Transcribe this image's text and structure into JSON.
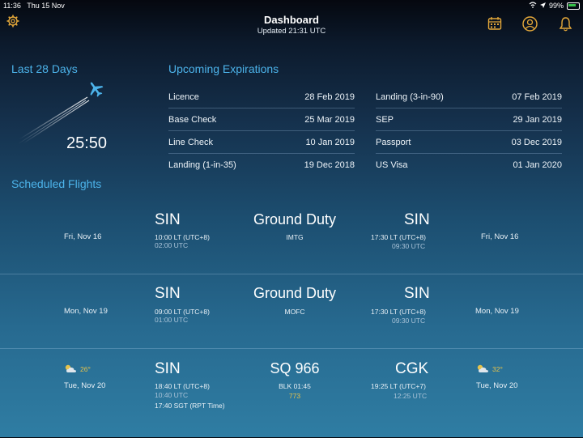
{
  "status": {
    "time": "11:36",
    "date": "Thu 15 Nov",
    "battery": "99%"
  },
  "header": {
    "title": "Dashboard",
    "updated": "Updated 21:31 UTC"
  },
  "last_days": {
    "title": "Last 28 Days",
    "total": "25:50"
  },
  "expirations": {
    "title": "Upcoming Expirations",
    "left": [
      {
        "label": "Licence",
        "date": "28 Feb 2019"
      },
      {
        "label": "Base Check",
        "date": "25 Mar 2019"
      },
      {
        "label": "Line Check",
        "date": "10 Jan 2019"
      },
      {
        "label": "Landing (1-in-35)",
        "date": "19 Dec 2018"
      }
    ],
    "right": [
      {
        "label": "Landing (3-in-90)",
        "date": "07 Feb 2019"
      },
      {
        "label": "SEP",
        "date": "29 Jan 2019"
      },
      {
        "label": "Passport",
        "date": "03 Dec 2019"
      },
      {
        "label": "US Visa",
        "date": "01 Jan 2020"
      }
    ]
  },
  "scheduled": {
    "title": "Scheduled Flights",
    "flights": [
      {
        "dep_date": "Fri, Nov 16",
        "dep": "SIN",
        "dep_lt": "10:00 LT (UTC+8)",
        "dep_utc": "02:00 UTC",
        "mid": "Ground Duty",
        "mid_sub": "IMTG",
        "arr": "SIN",
        "arr_lt": "17:30 LT (UTC+8)",
        "arr_utc": "09:30 UTC",
        "arr_date": "Fri, Nov 16"
      },
      {
        "dep_date": "Mon, Nov 19",
        "dep": "SIN",
        "dep_lt": "09:00 LT (UTC+8)",
        "dep_utc": "01:00 UTC",
        "mid": "Ground Duty",
        "mid_sub": "MOFC",
        "arr": "SIN",
        "arr_lt": "17:30 LT (UTC+8)",
        "arr_utc": "09:30 UTC",
        "arr_date": "Mon, Nov 19"
      },
      {
        "dep_weather": "26°",
        "dep_date": "Tue, Nov 20",
        "dep": "SIN",
        "dep_lt": "18:40 LT (UTC+8)",
        "dep_utc": "10:40 UTC",
        "rpt": "17:40 SGT (RPT Time)",
        "mid": "SQ 966",
        "mid_sub": "BLK 01:45",
        "mid_reg": "773",
        "arr": "CGK",
        "arr_lt": "19:25 LT (UTC+7)",
        "arr_utc": "12:25 UTC",
        "arr_weather": "32°",
        "arr_date": "Tue, Nov 20"
      }
    ]
  },
  "icons": {
    "settings": "gear-icon",
    "calendar": "calendar-icon",
    "profile": "profile-icon",
    "notifications": "bell-icon"
  },
  "colors": {
    "accent": "#4cb3ea",
    "icon": "#e6a93a",
    "warning": "#e5c24c"
  }
}
